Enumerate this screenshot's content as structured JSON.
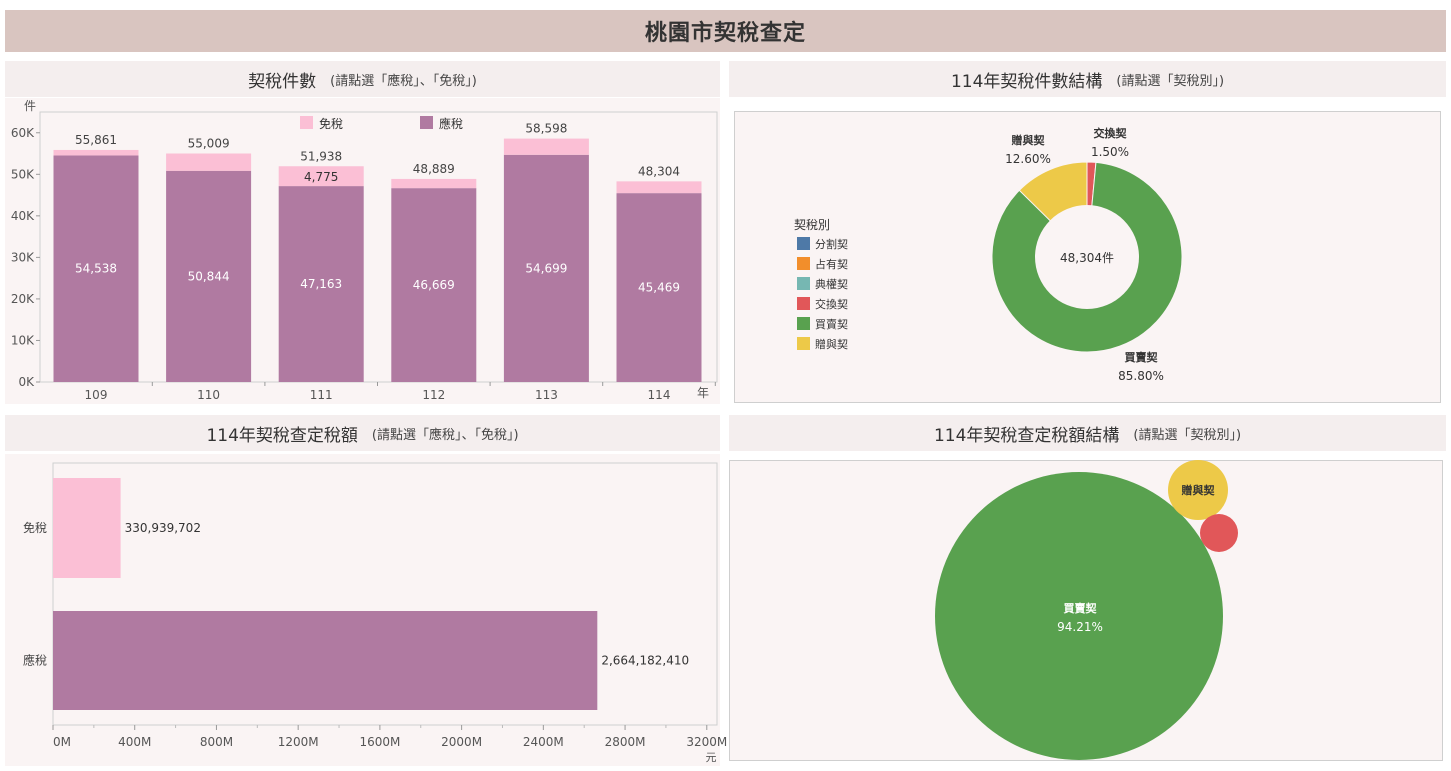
{
  "page_title": "桃園市契稅查定",
  "panel1": {
    "title": "契稅件數",
    "hint": "(請點選「應稅」、「免稅」)"
  },
  "panel2": {
    "title": "114年契稅件數結構",
    "hint": "(請點選「契稅別」)"
  },
  "panel3": {
    "title": "114年契稅查定稅額",
    "hint": "(請點選「應稅」、「免稅」)"
  },
  "panel4": {
    "title": "114年契稅查定稅額結構",
    "hint": "(請點選「契稅別」)"
  },
  "colors": {
    "taxable": "#b07aa1",
    "exempt": "#fbbfd5",
    "split": "#4e79a7",
    "possession": "#f28e2b",
    "pledge": "#76b7b2",
    "exchange": "#e15759",
    "sale": "#59a14f",
    "gift": "#edc948"
  },
  "chart_data": [
    {
      "type": "bar",
      "stacked": true,
      "categories": [
        "109",
        "110",
        "111",
        "112",
        "113",
        "114"
      ],
      "series": [
        {
          "name": "應稅",
          "values": [
            54538,
            50844,
            47163,
            46669,
            54699,
            45469
          ],
          "color": "#b07aa1"
        },
        {
          "name": "免稅",
          "values": [
            1323,
            4165,
            4775,
            2220,
            3899,
            2835
          ],
          "color": "#fbbfd5"
        }
      ],
      "totals": [
        55861,
        55009,
        51938,
        48889,
        58598,
        48304
      ],
      "exempt_labels": [
        "",
        "",
        "4,775",
        "",
        "",
        ""
      ],
      "taxable_labels": [
        "54,538",
        "50,844",
        "47,163",
        "46,669",
        "54,699",
        "45,469"
      ],
      "total_labels": [
        "55,861",
        "55,009",
        "51,938",
        "48,889",
        "58,598",
        "48,304"
      ],
      "ylabel": "件",
      "xlabel": "年",
      "ylim": [
        0,
        65000
      ],
      "yticks": [
        0,
        10000,
        20000,
        30000,
        40000,
        50000,
        60000
      ],
      "ytick_labels": [
        "0K",
        "10K",
        "20K",
        "30K",
        "40K",
        "50K",
        "60K"
      ],
      "legend": [
        "免稅",
        "應稅"
      ],
      "legend_position": "top"
    },
    {
      "type": "pie",
      "donut": true,
      "center_label": "48,304件",
      "legend_title": "契稅別",
      "legend": [
        "分割契",
        "占有契",
        "典權契",
        "交換契",
        "買賣契",
        "贈與契"
      ],
      "slices": [
        {
          "name": "交換契",
          "value": 1.5,
          "label": "1.50%",
          "color": "#e15759"
        },
        {
          "name": "買賣契",
          "value": 85.8,
          "label": "85.80%",
          "color": "#59a14f"
        },
        {
          "name": "贈與契",
          "value": 12.6,
          "label": "12.60%",
          "color": "#edc948"
        }
      ],
      "legend_position": "left"
    },
    {
      "type": "bar",
      "orientation": "horizontal",
      "categories": [
        "免稅",
        "應稅"
      ],
      "values": [
        330939702,
        2664182410
      ],
      "value_labels": [
        "330,939,702",
        "2,664,182,410"
      ],
      "colors": [
        "#fbbfd5",
        "#b07aa1"
      ],
      "xlabel": "元",
      "xlim": [
        0,
        3250000000
      ],
      "xticks": [
        0,
        400000000,
        800000000,
        1200000000,
        1600000000,
        2000000000,
        2400000000,
        2800000000,
        3200000000
      ],
      "xtick_labels": [
        "0M",
        "400M",
        "800M",
        "1200M",
        "1600M",
        "2000M",
        "2400M",
        "2800M",
        "3200M"
      ]
    },
    {
      "type": "bubble",
      "bubbles": [
        {
          "name": "買賣契",
          "label": "94.21%",
          "color": "#59a14f"
        },
        {
          "name": "贈與契",
          "label": "",
          "color": "#edc948"
        },
        {
          "name": "交換契",
          "label": "",
          "color": "#e15759"
        }
      ]
    }
  ]
}
